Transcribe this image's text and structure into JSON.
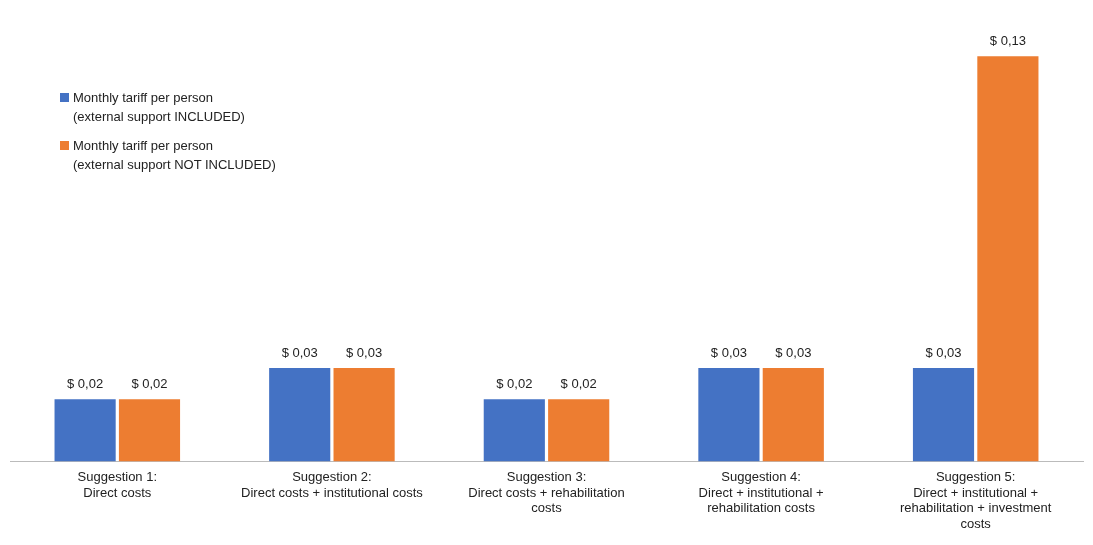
{
  "chart_data": {
    "type": "bar",
    "categories": [
      "Suggestion 1:\nDirect costs",
      "Suggestion 2:\nDirect costs + institutional costs",
      "Suggestion 3:\nDirect costs + rehabilitation\ncosts",
      "Suggestion 4:\nDirect + institutional +\nrehabilitation costs",
      "Suggestion 5:\nDirect + institutional +\nrehabilitation + investment\ncosts"
    ],
    "series": [
      {
        "name": "Monthly tariff per person\n(external support INCLUDED)",
        "color": "#4472c4",
        "values": [
          0.02,
          0.03,
          0.02,
          0.03,
          0.03
        ],
        "value_labels": [
          "$ 0,02",
          "$ 0,03",
          "$ 0,02",
          "$ 0,03",
          "$ 0,03"
        ]
      },
      {
        "name": "Monthly tariff per person\n(external support NOT INCLUDED)",
        "color": "#ed7d31",
        "values": [
          0.02,
          0.03,
          0.02,
          0.03,
          0.13
        ],
        "value_labels": [
          "$ 0,02",
          "$ 0,03",
          "$ 0,02",
          "$ 0,03",
          "$ 0,13"
        ]
      }
    ],
    "legend": "top left",
    "grid": false
  }
}
